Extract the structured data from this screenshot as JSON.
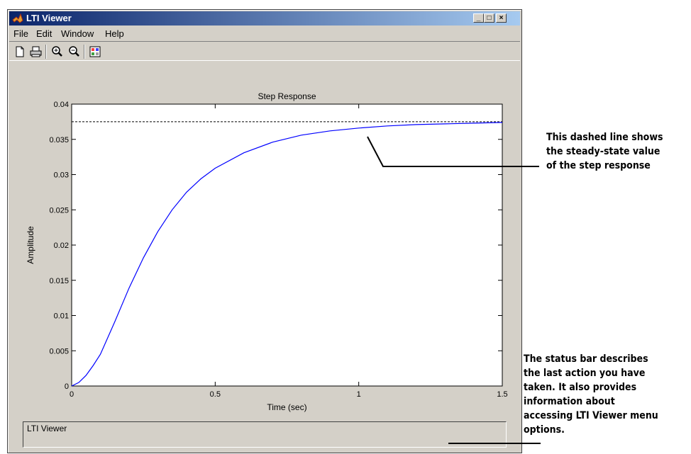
{
  "window": {
    "title": "LTI Viewer",
    "buttons": {
      "minimize": "_",
      "maximize": "□",
      "close": "×"
    }
  },
  "menu": [
    "File",
    "Edit",
    "Window",
    "Help"
  ],
  "toolbar": {
    "icons": [
      "new-file-icon",
      "print-icon",
      "zoom-in-icon",
      "zoom-out-icon",
      "plot-config-icon"
    ]
  },
  "status": {
    "text": "LTI Viewer"
  },
  "annotations": {
    "steady_state": "This dashed line shows\nthe steady-state value\nof the step response",
    "status_bar": "The status bar describes\nthe last action you have\ntaken. It also provides\ninformation about\naccessing LTI Viewer menu\noptions."
  },
  "colors": {
    "response": "#0000ff",
    "title_bar_start": "#0a246a",
    "title_bar_end": "#a6caf0"
  },
  "chart_data": {
    "type": "line",
    "title": "Step Response",
    "xlabel": "Time (sec)",
    "ylabel": "Amplitude",
    "xlim": [
      0,
      1.5
    ],
    "ylim": [
      0,
      0.04
    ],
    "xticks": [
      0,
      0.5,
      1,
      1.5
    ],
    "xtick_labels": [
      "0",
      "0.5",
      "1",
      "1.5"
    ],
    "yticks": [
      0,
      0.005,
      0.01,
      0.015,
      0.02,
      0.025,
      0.03,
      0.035,
      0.04
    ],
    "ytick_labels": [
      "0",
      "0.005",
      "0.01",
      "0.015",
      "0.02",
      "0.025",
      "0.03",
      "0.035",
      "0.04"
    ],
    "steady_state": 0.0375,
    "series": [
      {
        "style": "solid",
        "x": [
          0,
          0.025,
          0.05,
          0.075,
          0.1,
          0.15,
          0.2,
          0.25,
          0.3,
          0.35,
          0.4,
          0.45,
          0.5,
          0.6,
          0.7,
          0.8,
          0.9,
          1.0,
          1.1,
          1.2,
          1.3,
          1.4,
          1.5
        ],
        "y": [
          0,
          0.0005,
          0.0015,
          0.0029,
          0.0045,
          0.0091,
          0.0139,
          0.0182,
          0.0219,
          0.025,
          0.0275,
          0.0294,
          0.0309,
          0.0331,
          0.0346,
          0.0356,
          0.0362,
          0.0366,
          0.0369,
          0.0371,
          0.0372,
          0.0373,
          0.0374
        ]
      }
    ]
  }
}
